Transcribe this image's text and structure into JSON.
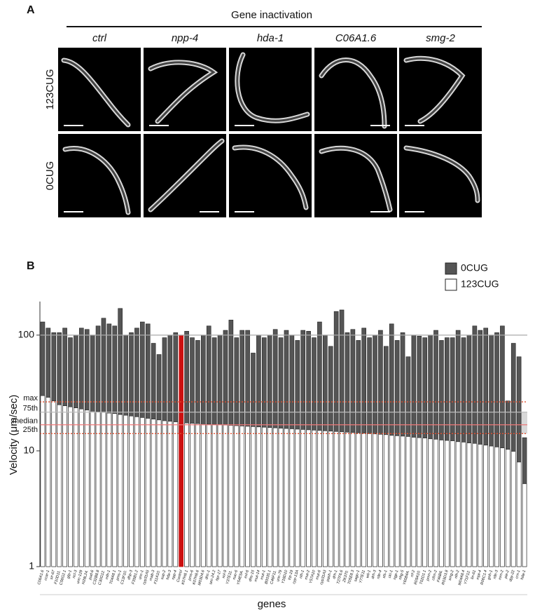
{
  "panel_a": {
    "label": "A",
    "title": "Gene inactivation",
    "columns": [
      "ctrl",
      "npp-4",
      "hda-1",
      "C06A1.6",
      "smg-2"
    ],
    "rows": [
      "123CUG",
      "0CUG"
    ]
  },
  "chart_data": {
    "type": "bar",
    "panel_label": "B",
    "x_label": "genes",
    "y_label": "Velocity (μm/sec)",
    "log_scale": true,
    "ylim": [
      1,
      195
    ],
    "yticks": [
      1,
      10,
      100
    ],
    "legend_position": "top-right",
    "highlight_category": "Control",
    "highlight_color": "#cc1111",
    "categories": [
      "C06A1.6",
      "ccar-1",
      "sir-67",
      "F10D11.",
      "C56G2.1",
      "glp-1",
      "ncl-3",
      "unc-129",
      "H28L24.",
      "pud-6",
      "C32B8.8",
      "C30G12.",
      "mlh-1",
      "T04A8.1",
      "pms-1",
      "C13F10.",
      "dhp-3",
      "F35B1.2",
      "unc-1",
      "cyp31A5",
      "mab-3",
      "F11A10.",
      "sup-2",
      "hda-3",
      "npp-4",
      "Control",
      "K07H8.1",
      "pms-6",
      "K07H8.6",
      "M03D4.6",
      "dnc-1",
      "sec-24.2",
      "hpr-17",
      "xol-9",
      "Y37E11.",
      "nuo-6",
      "Y54E5A.",
      "exl-6",
      "dhs-15",
      "mut-14",
      "mut-1",
      "B0035.1",
      "C46F11.",
      "unc-79",
      "Y18D10",
      "trp-19",
      "cyp-13A",
      "nlh-1",
      "mut-2",
      "Y57A10",
      "mut-6",
      "cyp31A3",
      "pash-1",
      "drh-1",
      "T27F6.6",
      "ZK370.",
      "T05E8.3",
      "sago-1",
      "Y77E11",
      "wit-1",
      "drh-3",
      "rde-4",
      "sfs-1",
      "cki-1",
      "ngp-1",
      "nhg-5",
      "Y65B4A.",
      "rrf-2",
      "R09A10.",
      "T02D1.1",
      "pmn-2",
      "cfim-2",
      "F46B6.",
      "R03D3.8",
      "smg-2",
      "nlh-2",
      "W04A8.4",
      "Y71F12.",
      "lin-61",
      "mpt-4",
      "R06C1.4",
      "gnh-1",
      "rde-3",
      "mrn-2",
      "pie-2",
      "dpy-22",
      "crn-1",
      "hda-1"
    ],
    "series": [
      {
        "name": "0CUG",
        "color": "#555555",
        "values": [
          130,
          115,
          105,
          105,
          115,
          95,
          100,
          115,
          112,
          100,
          120,
          140,
          125,
          120,
          170,
          100,
          105,
          115,
          130,
          125,
          85,
          68,
          95,
          100,
          105,
          100,
          108,
          95,
          90,
          100,
          120,
          95,
          100,
          110,
          135,
          95,
          110,
          110,
          70,
          100,
          95,
          100,
          112,
          95,
          110,
          100,
          90,
          110,
          108,
          95,
          130,
          100,
          80,
          160,
          165,
          105,
          112,
          90,
          115,
          95,
          100,
          110,
          80,
          125,
          90,
          105,
          65,
          100,
          98,
          95,
          100,
          110,
          90,
          95,
          95,
          110,
          95,
          100,
          120,
          110,
          115,
          100,
          105,
          120,
          27,
          85,
          65,
          13
        ]
      },
      {
        "name": "123CUG",
        "color": "#ffffff",
        "values": [
          30,
          29,
          27,
          25,
          24.5,
          24,
          23.5,
          23,
          22.5,
          22,
          21.8,
          21.5,
          21.2,
          21,
          20.6,
          20.3,
          20,
          19.7,
          19.4,
          19.1,
          18.8,
          18.5,
          18.2,
          18,
          17.8,
          17.4,
          17.4,
          17.3,
          17.2,
          17.1,
          17,
          16.9,
          16.8,
          16.7,
          16.6,
          16.5,
          16.4,
          16.3,
          16.2,
          16.1,
          16,
          15.9,
          15.8,
          15.7,
          15.6,
          15.5,
          15.4,
          15.3,
          15.2,
          15.1,
          15,
          14.9,
          14.8,
          14.7,
          14.6,
          14.5,
          14.4,
          14.3,
          14.2,
          14.1,
          14,
          13.9,
          13.8,
          13.6,
          13.5,
          13.4,
          13.3,
          13.1,
          13,
          12.9,
          12.7,
          12.6,
          12.4,
          12.3,
          12.2,
          12,
          11.9,
          11.7,
          11.6,
          11.4,
          11.2,
          11,
          10.8,
          10.6,
          10.3,
          9.9,
          8,
          5.2
        ]
      }
    ],
    "reference_lines": [
      {
        "value": 100,
        "color": "#aaaaaa",
        "style": "solid"
      },
      {
        "label": "max",
        "value": 26.5,
        "color": "#e05030",
        "style": "dotted"
      },
      {
        "label": "75th",
        "value": 21.6,
        "color": "#bbbbbb",
        "style": "solid"
      },
      {
        "label": "median",
        "value": 16.8,
        "color": "#ee7777",
        "style": "solid"
      },
      {
        "label": "25th",
        "value": 14.1,
        "color": "#e05030",
        "style": "dotted"
      }
    ],
    "band_between": [
      "75th",
      "25th"
    ],
    "band_color": "#d8d8d8"
  }
}
